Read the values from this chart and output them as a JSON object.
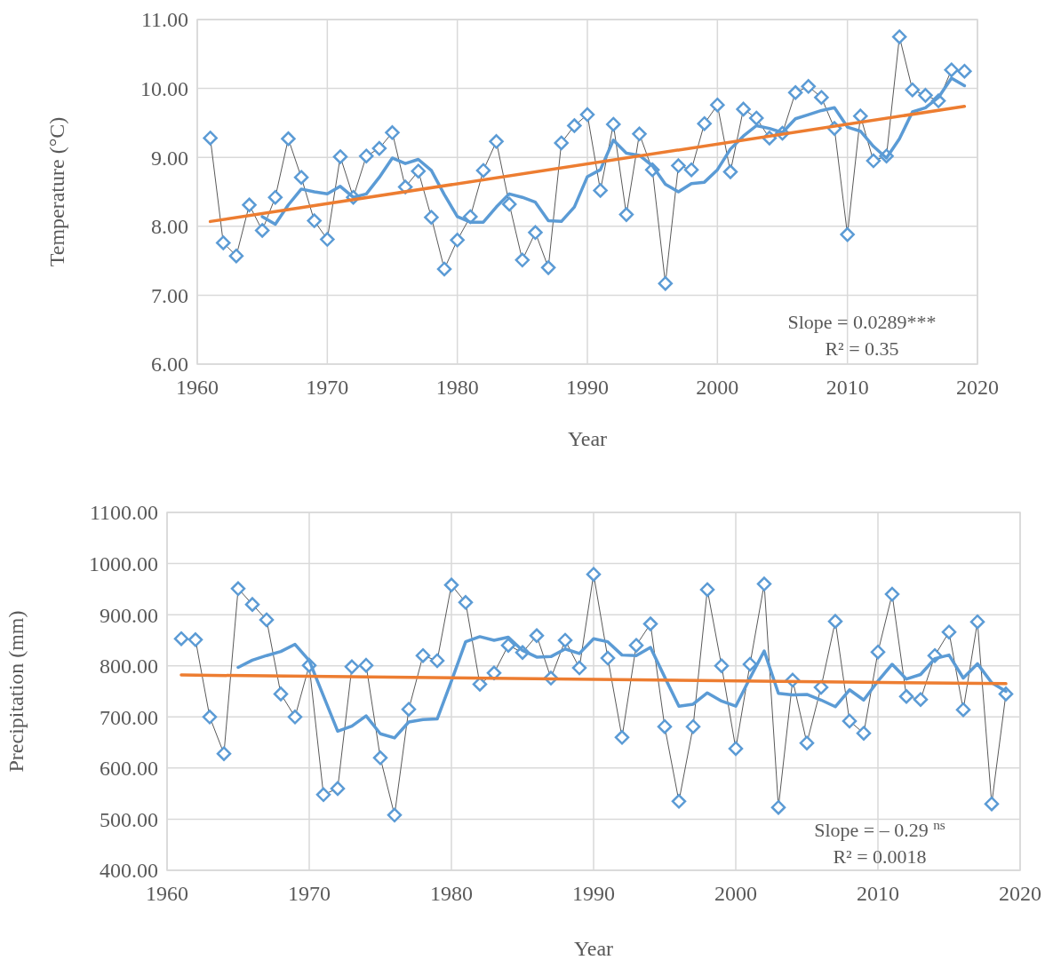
{
  "chart_data": [
    {
      "type": "line",
      "xlabel": "Year",
      "ylabel": "Temperature (°C)",
      "xlim": [
        1960,
        2020
      ],
      "xticks": [
        1960,
        1970,
        1980,
        1990,
        2000,
        2010,
        2020
      ],
      "ylim": [
        6,
        11
      ],
      "yticks": [
        {
          "value": 6,
          "label": "6.00"
        },
        {
          "value": 7,
          "label": "7.00"
        },
        {
          "value": 8,
          "label": "8.00"
        },
        {
          "value": 9,
          "label": "9.00"
        },
        {
          "value": 10,
          "label": "10.00"
        },
        {
          "value": 11,
          "label": "11.00"
        }
      ],
      "grid": true,
      "annotations": [
        "Slope = 0.0289***",
        "R² = 0.35"
      ],
      "series": [
        {
          "type": "line",
          "color": "#5b9bd5",
          "marker": "diamond",
          "x": [
            1961,
            1962,
            1963,
            1964,
            1965,
            1966,
            1967,
            1968,
            1969,
            1970,
            1971,
            1972,
            1973,
            1974,
            1975,
            1976,
            1977,
            1978,
            1979,
            1980,
            1981,
            1982,
            1983,
            1984,
            1985,
            1986,
            1987,
            1988,
            1989,
            1990,
            1991,
            1992,
            1993,
            1994,
            1995,
            1996,
            1997,
            1998,
            1999,
            2000,
            2001,
            2002,
            2003,
            2004,
            2005,
            2006,
            2007,
            2008,
            2009,
            2010,
            2011,
            2012,
            2013,
            2014,
            2015,
            2016,
            2017,
            2018,
            2019
          ],
          "values": [
            9.28,
            7.76,
            7.57,
            8.31,
            7.94,
            8.42,
            9.27,
            8.71,
            8.08,
            7.81,
            9.01,
            8.42,
            9.02,
            9.13,
            9.36,
            8.57,
            8.8,
            8.13,
            7.38,
            7.8,
            8.14,
            8.81,
            9.23,
            8.32,
            7.51,
            7.91,
            7.4,
            9.21,
            9.46,
            9.62,
            8.52,
            9.48,
            8.17,
            9.34,
            8.82,
            7.17,
            8.88,
            8.82,
            9.49,
            9.76,
            8.79,
            9.7,
            9.57,
            9.28,
            9.35,
            9.94,
            10.03,
            9.87,
            9.42,
            7.88,
            9.6,
            8.95,
            9.02,
            10.75,
            9.98,
            9.9,
            9.82,
            10.27,
            10.25
          ]
        },
        {
          "type": "line",
          "color": "#5b9bd5",
          "marker": "none",
          "x": [
            1965,
            1966,
            1967,
            1968,
            1969,
            1970,
            1971,
            1972,
            1973,
            1974,
            1975,
            1976,
            1977,
            1978,
            1979,
            1980,
            1981,
            1982,
            1983,
            1984,
            1985,
            1986,
            1987,
            1988,
            1989,
            1990,
            1991,
            1992,
            1993,
            1994,
            1995,
            1996,
            1997,
            1998,
            1999,
            2000,
            2001,
            2002,
            2003,
            2004,
            2005,
            2006,
            2007,
            2008,
            2009,
            2010,
            2011,
            2012,
            2013,
            2014,
            2015,
            2016,
            2017,
            2018,
            2019
          ],
          "values": [
            8.14,
            8.03,
            8.31,
            8.54,
            8.5,
            8.47,
            8.58,
            8.42,
            8.47,
            8.71,
            8.99,
            8.91,
            8.97,
            8.81,
            8.46,
            8.14,
            8.06,
            8.06,
            8.28,
            8.47,
            8.42,
            8.35,
            8.08,
            8.07,
            8.28,
            8.72,
            8.82,
            9.25,
            9.06,
            9.03,
            8.88,
            8.61,
            8.5,
            8.62,
            8.64,
            8.82,
            9.12,
            9.31,
            9.46,
            9.42,
            9.36,
            9.56,
            9.62,
            9.68,
            9.72,
            9.44,
            9.38,
            9.16,
            8.99,
            9.27,
            9.66,
            9.72,
            9.87,
            10.15,
            10.04
          ]
        },
        {
          "type": "line",
          "color": "#ed7d31",
          "marker": "none",
          "x": [
            1961,
            2019
          ],
          "values": [
            8.07,
            9.74
          ]
        }
      ]
    },
    {
      "type": "line",
      "xlabel": "Year",
      "ylabel": "Precipitation (mm)",
      "xlim": [
        1960,
        2020
      ],
      "xticks": [
        1960,
        1970,
        1980,
        1990,
        2000,
        2010,
        2020
      ],
      "ylim": [
        400,
        1100
      ],
      "yticks": [
        {
          "value": 400,
          "label": "400.00"
        },
        {
          "value": 500,
          "label": "500.00"
        },
        {
          "value": 600,
          "label": "600.00"
        },
        {
          "value": 700,
          "label": "700.00"
        },
        {
          "value": 800,
          "label": "800.00"
        },
        {
          "value": 900,
          "label": "900.00"
        },
        {
          "value": 1000,
          "label": "1000.00"
        },
        {
          "value": 1100,
          "label": "1100.00"
        }
      ],
      "grid": true,
      "annotations": [
        "Slope = – 0.29 $^{ns}$",
        "R² = 0.0018"
      ],
      "series": [
        {
          "type": "line",
          "color": "#5b9bd5",
          "marker": "diamond",
          "x": [
            1961,
            1962,
            1963,
            1964,
            1965,
            1966,
            1967,
            1968,
            1969,
            1970,
            1971,
            1972,
            1973,
            1974,
            1975,
            1976,
            1977,
            1978,
            1979,
            1980,
            1981,
            1982,
            1983,
            1984,
            1985,
            1986,
            1987,
            1988,
            1989,
            1990,
            1991,
            1992,
            1993,
            1994,
            1995,
            1996,
            1997,
            1998,
            1999,
            2000,
            2001,
            2002,
            2003,
            2004,
            2005,
            2006,
            2007,
            2008,
            2009,
            2010,
            2011,
            2012,
            2013,
            2014,
            2015,
            2016,
            2017,
            2018,
            2019
          ],
          "values": [
            853,
            851,
            700,
            628,
            951,
            920,
            890,
            745,
            700,
            801,
            548,
            560,
            798,
            801,
            620,
            508,
            715,
            820,
            810,
            958,
            924,
            764,
            786,
            840,
            826,
            859,
            776,
            850,
            796,
            979,
            815,
            660,
            840,
            882,
            681,
            535,
            681,
            949,
            800,
            638,
            803,
            960,
            523,
            772,
            649,
            758,
            887,
            692,
            668,
            827,
            940,
            740,
            734,
            820,
            866,
            714,
            886,
            530,
            745
          ]
        },
        {
          "type": "line",
          "color": "#5b9bd5",
          "marker": "none",
          "x": [
            1965,
            1966,
            1967,
            1968,
            1969,
            1970,
            1971,
            1972,
            1973,
            1974,
            1975,
            1976,
            1977,
            1978,
            1979,
            1980,
            1981,
            1982,
            1983,
            1984,
            1985,
            1986,
            1987,
            1988,
            1989,
            1990,
            1991,
            1992,
            1993,
            1994,
            1995,
            1996,
            1997,
            1998,
            1999,
            2000,
            2001,
            2002,
            2003,
            2004,
            2005,
            2006,
            2007,
            2008,
            2009,
            2010,
            2011,
            2012,
            2013,
            2014,
            2015,
            2016,
            2017,
            2018,
            2019
          ],
          "values": [
            797,
            811,
            820,
            828,
            842,
            810,
            741,
            672,
            682,
            702,
            667,
            659,
            690,
            695,
            696,
            770,
            847,
            857,
            850,
            856,
            830,
            817,
            818,
            833,
            824,
            853,
            847,
            821,
            820,
            836,
            778,
            721,
            725,
            747,
            731,
            721,
            776,
            829,
            746,
            743,
            744,
            733,
            720,
            753,
            733,
            770,
            803,
            774,
            783,
            814,
            821,
            776,
            804,
            767,
            750
          ]
        },
        {
          "type": "line",
          "color": "#ed7d31",
          "marker": "none",
          "x": [
            1961,
            2019
          ],
          "values": [
            782,
            765
          ]
        }
      ]
    }
  ]
}
